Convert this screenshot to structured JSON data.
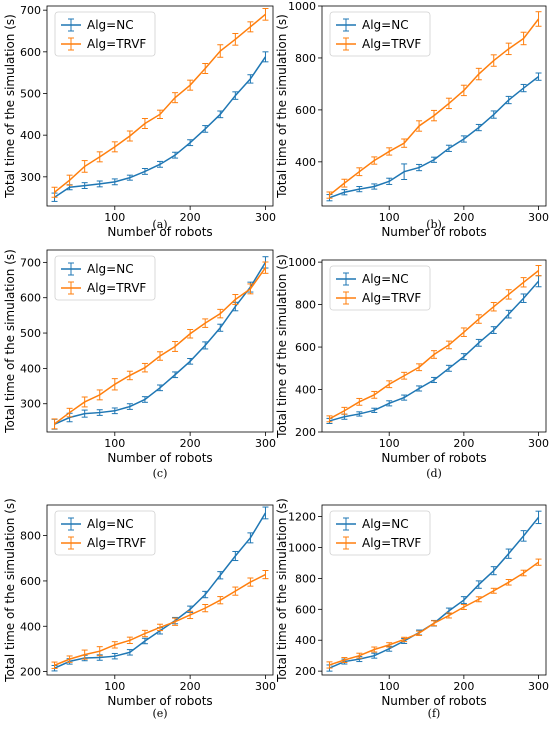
{
  "chart_data": [
    {
      "type": "line",
      "caption": "(a)",
      "xlabel": "Number of robots",
      "ylabel": "Total time of the simulation (s)",
      "xticks": [
        100,
        200,
        300
      ],
      "yticks": [
        300,
        400,
        500,
        600,
        700
      ],
      "xlim": [
        10,
        310
      ],
      "ylim": [
        230,
        710
      ],
      "legend": "top-left",
      "x": [
        20,
        40,
        60,
        80,
        100,
        120,
        140,
        160,
        180,
        200,
        220,
        240,
        260,
        280,
        300
      ],
      "series": [
        {
          "name": "Alg=NC",
          "color": "#1f77b4",
          "values": [
            251,
            275,
            279,
            283,
            288,
            298,
            313,
            330,
            352,
            382,
            415,
            450,
            495,
            535,
            588
          ],
          "errors": [
            10,
            6,
            7,
            7,
            7,
            6,
            7,
            7,
            7,
            7,
            8,
            8,
            9,
            10,
            12
          ]
        },
        {
          "name": "Alg=TRVF",
          "color": "#ff7f0e",
          "values": [
            263,
            292,
            325,
            348,
            372,
            398,
            428,
            450,
            490,
            520,
            560,
            602,
            630,
            660,
            690
          ],
          "errors": [
            12,
            12,
            14,
            12,
            12,
            12,
            12,
            10,
            12,
            12,
            12,
            15,
            14,
            12,
            14
          ]
        }
      ]
    },
    {
      "type": "line",
      "caption": "(b)",
      "xlabel": "Number of robots",
      "ylabel": "Total time of the simulation (s)",
      "xticks": [
        100,
        200,
        300
      ],
      "yticks": [
        400,
        600,
        800,
        1000
      ],
      "xlim": [
        10,
        310
      ],
      "ylim": [
        230,
        1000
      ],
      "legend": "top-left",
      "x": [
        20,
        40,
        60,
        80,
        100,
        120,
        140,
        160,
        180,
        200,
        220,
        240,
        260,
        280,
        300
      ],
      "series": [
        {
          "name": "Alg=NC",
          "color": "#1f77b4",
          "values": [
            262,
            283,
            295,
            305,
            325,
            362,
            378,
            408,
            452,
            488,
            532,
            582,
            638,
            684,
            728
          ],
          "errors": [
            12,
            10,
            10,
            10,
            12,
            30,
            12,
            10,
            12,
            12,
            12,
            14,
            14,
            14,
            14
          ]
        },
        {
          "name": "Alg=TRVF",
          "color": "#ff7f0e",
          "values": [
            272,
            318,
            362,
            405,
            440,
            472,
            538,
            578,
            625,
            675,
            738,
            790,
            835,
            875,
            950
          ],
          "errors": [
            12,
            15,
            15,
            14,
            14,
            16,
            20,
            20,
            20,
            20,
            22,
            22,
            22,
            24,
            28
          ]
        }
      ]
    },
    {
      "type": "line",
      "caption": "(c)",
      "xlabel": "Number of robots",
      "ylabel": "Total time of the simulation (s)",
      "xticks": [
        100,
        200,
        300
      ],
      "yticks": [
        300,
        400,
        500,
        600,
        700
      ],
      "xlim": [
        10,
        310
      ],
      "ylim": [
        220,
        735
      ],
      "legend": "top-left",
      "x": [
        20,
        40,
        60,
        80,
        100,
        120,
        140,
        160,
        180,
        200,
        220,
        240,
        260,
        280,
        300
      ],
      "series": [
        {
          "name": "Alg=NC",
          "color": "#1f77b4",
          "values": [
            242,
            261,
            272,
            275,
            280,
            292,
            312,
            345,
            382,
            420,
            465,
            515,
            575,
            630,
            700
          ],
          "errors": [
            14,
            12,
            10,
            8,
            8,
            8,
            8,
            8,
            8,
            8,
            10,
            10,
            12,
            14,
            16
          ]
        },
        {
          "name": "Alg=TRVF",
          "color": "#ff7f0e",
          "values": [
            243,
            275,
            305,
            325,
            355,
            380,
            402,
            435,
            462,
            498,
            528,
            555,
            595,
            625,
            685
          ],
          "errors": [
            14,
            12,
            14,
            14,
            16,
            12,
            12,
            12,
            14,
            12,
            12,
            12,
            14,
            14,
            16
          ]
        }
      ]
    },
    {
      "type": "line",
      "caption": "(d)",
      "xlabel": "Number of robots",
      "ylabel": "Total time of the simulation (s)",
      "xticks": [
        100,
        200,
        300
      ],
      "yticks": [
        200,
        400,
        600,
        800,
        1000
      ],
      "xlim": [
        10,
        310
      ],
      "ylim": [
        200,
        1010
      ],
      "legend": "top-left",
      "x": [
        20,
        40,
        60,
        80,
        100,
        120,
        140,
        160,
        180,
        200,
        220,
        240,
        260,
        280,
        300
      ],
      "series": [
        {
          "name": "Alg=NC",
          "color": "#1f77b4",
          "values": [
            252,
            272,
            285,
            302,
            335,
            362,
            405,
            445,
            500,
            555,
            620,
            680,
            755,
            830,
            910
          ],
          "errors": [
            12,
            12,
            10,
            10,
            12,
            12,
            12,
            12,
            14,
            14,
            16,
            16,
            18,
            20,
            26
          ]
        },
        {
          "name": "Alg=TRVF",
          "color": "#ff7f0e",
          "values": [
            262,
            300,
            342,
            375,
            425,
            465,
            505,
            565,
            610,
            670,
            732,
            790,
            848,
            905,
            960
          ],
          "errors": [
            14,
            16,
            16,
            16,
            16,
            16,
            16,
            18,
            18,
            20,
            20,
            20,
            22,
            22,
            24
          ]
        }
      ]
    },
    {
      "type": "line",
      "caption": "(e)",
      "xlabel": "Number of robots",
      "ylabel": "Total time of the simulation (s)",
      "xticks": [
        100,
        200,
        300
      ],
      "yticks": [
        200,
        400,
        600,
        800
      ],
      "xlim": [
        10,
        310
      ],
      "ylim": [
        185,
        935
      ],
      "legend": "top-left",
      "x": [
        20,
        40,
        60,
        80,
        100,
        120,
        140,
        160,
        180,
        200,
        220,
        240,
        260,
        280,
        300
      ],
      "series": [
        {
          "name": "Alg=NC",
          "color": "#1f77b4",
          "values": [
            215,
            245,
            260,
            262,
            268,
            285,
            335,
            380,
            425,
            475,
            540,
            625,
            710,
            790,
            900
          ],
          "errors": [
            12,
            12,
            12,
            12,
            12,
            12,
            12,
            14,
            14,
            14,
            14,
            16,
            20,
            22,
            26
          ]
        },
        {
          "name": "Alg=TRVF",
          "color": "#ff7f0e",
          "values": [
            228,
            255,
            275,
            290,
            318,
            338,
            368,
            395,
            420,
            450,
            480,
            515,
            555,
            595,
            628
          ],
          "errors": [
            14,
            14,
            20,
            20,
            14,
            14,
            14,
            14,
            16,
            16,
            16,
            16,
            18,
            18,
            18
          ]
        }
      ]
    },
    {
      "type": "line",
      "caption": "(f)",
      "xlabel": "Number of robots",
      "ylabel": "Total time of the simulation (s)",
      "xticks": [
        100,
        200,
        300
      ],
      "yticks": [
        200,
        400,
        600,
        800,
        1000,
        1200
      ],
      "xlim": [
        10,
        310
      ],
      "ylim": [
        175,
        1275
      ],
      "legend": "top-left",
      "x": [
        20,
        40,
        60,
        80,
        100,
        120,
        140,
        160,
        180,
        200,
        220,
        240,
        260,
        280,
        300
      ],
      "series": [
        {
          "name": "Alg=NC",
          "color": "#1f77b4",
          "values": [
            220,
            262,
            278,
            300,
            345,
            395,
            450,
            510,
            590,
            660,
            760,
            850,
            960,
            1075,
            1195
          ],
          "errors": [
            20,
            16,
            16,
            16,
            16,
            16,
            16,
            18,
            18,
            22,
            24,
            26,
            30,
            34,
            40
          ]
        },
        {
          "name": "Alg=TRVF",
          "color": "#ff7f0e",
          "values": [
            240,
            272,
            300,
            340,
            370,
            405,
            445,
            510,
            560,
            615,
            665,
            720,
            775,
            835,
            905
          ],
          "errors": [
            20,
            16,
            16,
            16,
            14,
            14,
            14,
            16,
            16,
            16,
            16,
            16,
            18,
            18,
            20
          ]
        }
      ]
    }
  ]
}
